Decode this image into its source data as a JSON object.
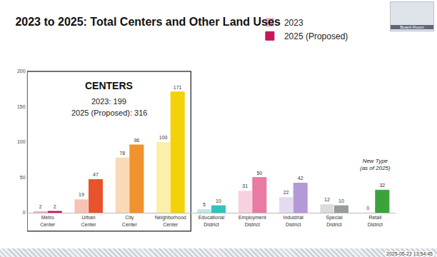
{
  "chart_data": {
    "type": "bar",
    "title": "2023 to 2025: Total Centers and Other Land Uses",
    "categories": [
      "Metro Center",
      "Urban Center",
      "City Center",
      "Neighborhood Center",
      "Educational District",
      "Employment District",
      "Industrial District",
      "Special District",
      "Retail District"
    ],
    "series": [
      {
        "name": "2023",
        "values": [
          2,
          19,
          78,
          100,
          5,
          31,
          22,
          12,
          0
        ],
        "colors": [
          "#c2185b",
          "#e8532b",
          "#f0922e",
          "#f5d10a",
          "#33c3bd",
          "#e97aa3",
          "#b499d8",
          "#9a9a9a",
          "#3aa43a"
        ]
      },
      {
        "name": "2025 (Proposed)",
        "values": [
          2,
          47,
          96,
          171,
          10,
          50,
          42,
          10,
          32
        ],
        "colors": [
          "#c2185b",
          "#e8532b",
          "#f0922e",
          "#f5d10a",
          "#33c3bd",
          "#e97aa3",
          "#b499d8",
          "#9a9a9a",
          "#3aa43a"
        ]
      }
    ],
    "ylim": [
      0,
      200
    ],
    "yticks": [
      0,
      50,
      100,
      150,
      200
    ],
    "grid": false,
    "data_labels": true,
    "legend": "top",
    "group_box": {
      "title": "CENTERS",
      "lines": [
        "2023: 199",
        "2025 (Proposed): 316"
      ],
      "categories": [
        "Metro Center",
        "Urban Center",
        "City Center",
        "Neighborhood Center"
      ]
    },
    "annotations": [
      {
        "text": [
          "New Type",
          "(as of 2025)"
        ],
        "category": "Retail District"
      }
    ]
  },
  "screen": {
    "camera_label": "Board Room",
    "timestamp": "2025-05-22 13:54:45"
  }
}
